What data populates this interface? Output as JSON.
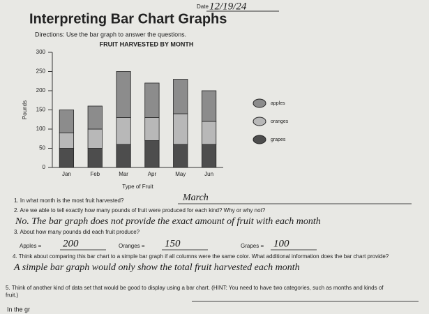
{
  "header": {
    "date_label": "Date",
    "date": "12/19/24",
    "title": "Interpreting Bar Chart Graphs",
    "directions": "Directions: Use the bar graph to answer the questions."
  },
  "chart_data": {
    "type": "stacked-bar",
    "title": "FRUIT HARVESTED BY MONTH",
    "x_label": "Type of Fruit",
    "y_label": "Pounds",
    "categories": [
      "Jan",
      "Feb",
      "Mar",
      "Apr",
      "May",
      "Jun"
    ],
    "series": [
      {
        "name": "apples",
        "color": "#8c8c8c",
        "values": [
          60,
          60,
          120,
          90,
          90,
          80
        ]
      },
      {
        "name": "oranges",
        "color": "#b8b8b8",
        "values": [
          40,
          50,
          70,
          60,
          80,
          60
        ]
      },
      {
        "name": "grapes",
        "color": "#4d4d4d",
        "values": [
          50,
          50,
          60,
          70,
          60,
          60
        ]
      }
    ],
    "ylim": [
      0,
      300
    ],
    "yticks": [
      0,
      50,
      100,
      150,
      200,
      250,
      300
    ],
    "legend": "right"
  },
  "questions": [
    {
      "text": "1. In what month is the most fruit harvested?",
      "answer": "March"
    },
    {
      "text": "2. Are we able to tell exactly how many pounds of fruit were produced for each kind? Why or why not?",
      "answer": "No. The bar graph does not provide the exact amount of fruit with each month"
    },
    {
      "text": "3. About how many pounds did each fruit produce?",
      "parts": [
        {
          "label": "Apples =",
          "answer": "200"
        },
        {
          "label": "Oranges =",
          "answer": "150"
        },
        {
          "label": "Grapes =",
          "answer": "100"
        }
      ]
    },
    {
      "text": "4. Think about comparing this bar chart to a simple bar graph if all columns were the same color. What additional information does the bar chart provide?",
      "answer": "A simple bar graph would only show the total fruit harvested each month"
    },
    {
      "text": "5. Think of another kind of data set that would be good to display using a bar chart. (HINT: You need to have two categories, such as months and kinds of fruit.)",
      "answer": "In the gr"
    }
  ]
}
